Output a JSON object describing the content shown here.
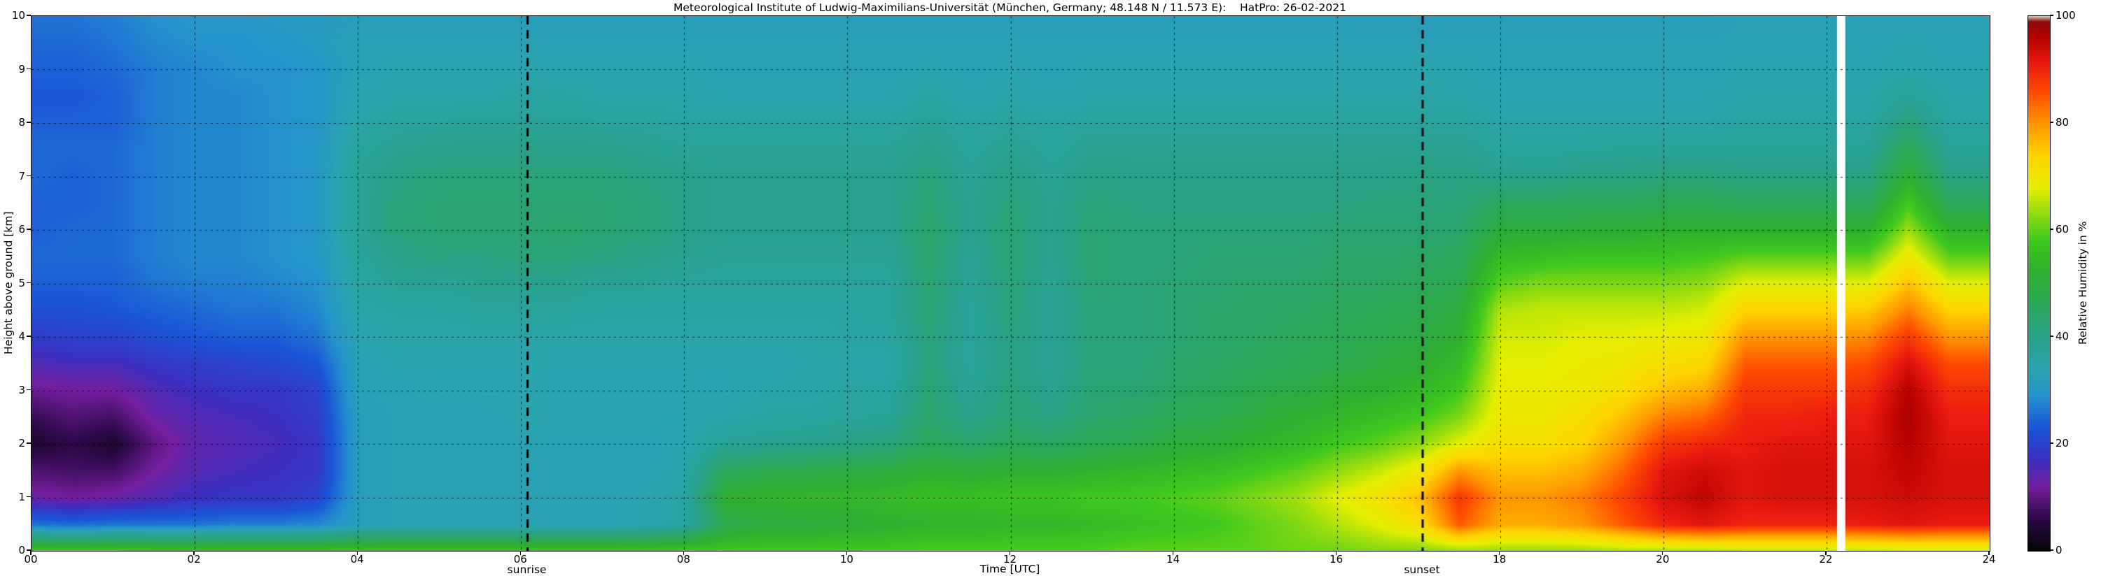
{
  "title": "Meteorological Institute of Ludwig-Maximilians-Universität (München, Germany; 48.148 N / 11.573 E):    HatPro: 26-02-2021",
  "axes": {
    "x": {
      "label": "Time [UTC]",
      "tick_values": [
        0,
        2,
        4,
        6,
        8,
        10,
        12,
        14,
        16,
        18,
        20,
        22,
        24
      ],
      "tick_labels": [
        "00",
        "02",
        "04",
        "06",
        "08",
        "10",
        "12",
        "14",
        "16",
        "18",
        "20",
        "22",
        "24"
      ],
      "grid_hours": [
        2,
        4,
        6,
        8,
        10,
        12,
        14,
        16,
        18,
        20,
        22
      ],
      "min": 0,
      "max": 24
    },
    "y": {
      "label": "Height above ground [km]",
      "tick_values": [
        0,
        1,
        2,
        3,
        4,
        5,
        6,
        7,
        8,
        9,
        10
      ],
      "tick_labels": [
        "0",
        "1",
        "2",
        "3",
        "4",
        "5",
        "6",
        "7",
        "8",
        "9",
        "10"
      ],
      "grid_km": [
        1,
        2,
        3,
        4,
        5,
        6,
        7,
        8,
        9
      ],
      "min": 0,
      "max": 10
    },
    "colorbar": {
      "label": "Relative Humidity in %",
      "tick_values": [
        0,
        20,
        40,
        60,
        80,
        100
      ],
      "tick_labels": [
        "0",
        "20",
        "40",
        "60",
        "80",
        "100"
      ],
      "min": 0,
      "max": 100
    }
  },
  "annotations": {
    "sunrise": {
      "label": "sunrise",
      "time": 6.08
    },
    "sunset": {
      "label": "sunset",
      "time": 17.05
    }
  },
  "missing_data": {
    "time": 22.18,
    "duration_h": 0.1
  },
  "chart_data": {
    "type": "heatmap",
    "x_range": [
      0,
      24
    ],
    "y_range": [
      0,
      10
    ],
    "time_step_h": 0.5,
    "height_step_km": 0.5,
    "value_label": "Relative Humidity in %",
    "value_range": [
      0,
      100
    ],
    "colormap_stops": [
      [
        0,
        "#060606"
      ],
      [
        6,
        "#2b0846"
      ],
      [
        12,
        "#741e9e"
      ],
      [
        17,
        "#3b2fc0"
      ],
      [
        23,
        "#1a55d8"
      ],
      [
        29,
        "#2492cc"
      ],
      [
        34,
        "#2aa4ae"
      ],
      [
        40,
        "#28a189"
      ],
      [
        46,
        "#2aa75a"
      ],
      [
        52,
        "#2fae30"
      ],
      [
        58,
        "#3ec81e"
      ],
      [
        63,
        "#90dc10"
      ],
      [
        68,
        "#e6ef00"
      ],
      [
        74,
        "#ffd500"
      ],
      [
        80,
        "#ff9700"
      ],
      [
        86,
        "#ff4a00"
      ],
      [
        91,
        "#ea1c10"
      ],
      [
        96,
        "#b70000"
      ],
      [
        99,
        "#8c0a0a"
      ],
      [
        100,
        "#cfc5ac"
      ]
    ],
    "values": [
      [
        58,
        26,
        13,
        9,
        4,
        7,
        11,
        15,
        19,
        22,
        24,
        25,
        24,
        24,
        25,
        25,
        24,
        23,
        24,
        25,
        26
      ],
      [
        58,
        25,
        12,
        8,
        6,
        9,
        12,
        16,
        20,
        22,
        24,
        25,
        25,
        24,
        24,
        25,
        24,
        23,
        24,
        25,
        26
      ],
      [
        58,
        26,
        13,
        8,
        4,
        8,
        12,
        16,
        20,
        23,
        24,
        25,
        25,
        25,
        25,
        25,
        24,
        24,
        25,
        26,
        27
      ],
      [
        57,
        26,
        15,
        12,
        10,
        13,
        15,
        18,
        22,
        24,
        26,
        27,
        27,
        27,
        27,
        27,
        27,
        27,
        27,
        28,
        29
      ],
      [
        57,
        26,
        17,
        15,
        14,
        15,
        17,
        19,
        23,
        25,
        27,
        28,
        28,
        28,
        28,
        28,
        28,
        28,
        28,
        29,
        30
      ],
      [
        57,
        27,
        18,
        16,
        15,
        16,
        18,
        20,
        24,
        26,
        27,
        28,
        28,
        28,
        28,
        28,
        28,
        28,
        29,
        29,
        30
      ],
      [
        57,
        27,
        18,
        17,
        16,
        17,
        18,
        21,
        24,
        26,
        28,
        29,
        29,
        29,
        29,
        29,
        29,
        29,
        29,
        30,
        31
      ],
      [
        57,
        28,
        20,
        18,
        18,
        19,
        20,
        23,
        26,
        28,
        29,
        30,
        30,
        30,
        30,
        30,
        30,
        30,
        30,
        31,
        31
      ],
      [
        57,
        32,
        32,
        32,
        32,
        32,
        33,
        33,
        34,
        35,
        36,
        37,
        38,
        38,
        38,
        37,
        35,
        34,
        33,
        33,
        32
      ],
      [
        57,
        33,
        33,
        33,
        33,
        33,
        33,
        34,
        35,
        36,
        38,
        40,
        42,
        42,
        41,
        39,
        37,
        35,
        34,
        33,
        32
      ],
      [
        57,
        33,
        33,
        33,
        33,
        33,
        34,
        34,
        35,
        36,
        38,
        41,
        43,
        43,
        42,
        40,
        37,
        35,
        34,
        33,
        32
      ],
      [
        57,
        33,
        33,
        33,
        33,
        33,
        34,
        34,
        35,
        37,
        39,
        41,
        43,
        43,
        42,
        40,
        38,
        35,
        34,
        33,
        32
      ],
      [
        57,
        33,
        33,
        33,
        33,
        34,
        34,
        34,
        35,
        37,
        39,
        42,
        43,
        43,
        42,
        40,
        38,
        36,
        34,
        33,
        32
      ],
      [
        57,
        33,
        33,
        33,
        33,
        34,
        34,
        34,
        35,
        37,
        39,
        42,
        44,
        43,
        42,
        40,
        38,
        36,
        34,
        33,
        32
      ],
      [
        57,
        33,
        33,
        33,
        33,
        34,
        34,
        34,
        35,
        36,
        38,
        41,
        43,
        43,
        42,
        40,
        37,
        35,
        34,
        33,
        32
      ],
      [
        57,
        34,
        34,
        33,
        33,
        34,
        34,
        34,
        35,
        36,
        38,
        40,
        42,
        42,
        41,
        39,
        37,
        35,
        34,
        33,
        32
      ],
      [
        58,
        36,
        36,
        35,
        34,
        34,
        34,
        34,
        35,
        36,
        37,
        39,
        40,
        40,
        40,
        38,
        36,
        35,
        34,
        33,
        32
      ],
      [
        58,
        48,
        52,
        46,
        38,
        35,
        34,
        34,
        35,
        36,
        37,
        38,
        39,
        39,
        39,
        38,
        36,
        34,
        33,
        33,
        32
      ],
      [
        58,
        50,
        53,
        48,
        39,
        36,
        35,
        34,
        35,
        36,
        37,
        38,
        39,
        39,
        39,
        38,
        36,
        34,
        33,
        33,
        32
      ],
      [
        58,
        50,
        54,
        48,
        40,
        36,
        35,
        35,
        35,
        36,
        37,
        38,
        39,
        39,
        39,
        38,
        36,
        34,
        33,
        33,
        32
      ],
      [
        58,
        51,
        54,
        49,
        41,
        37,
        36,
        35,
        36,
        36,
        37,
        38,
        39,
        39,
        39,
        38,
        36,
        34,
        33,
        33,
        32
      ],
      [
        58,
        52,
        55,
        50,
        42,
        38,
        36,
        35,
        36,
        37,
        37,
        38,
        39,
        39,
        39,
        38,
        36,
        34,
        33,
        33,
        32
      ],
      [
        59,
        53,
        56,
        52,
        46,
        44,
        43,
        42,
        42,
        43,
        43,
        44,
        44,
        43,
        42,
        40,
        38,
        36,
        34,
        33,
        32
      ],
      [
        59,
        53,
        56,
        51,
        44,
        40,
        38,
        37,
        37,
        37,
        38,
        38,
        39,
        39,
        38,
        37,
        36,
        34,
        33,
        33,
        32
      ],
      [
        59,
        54,
        57,
        52,
        46,
        43,
        42,
        41,
        41,
        42,
        42,
        43,
        43,
        42,
        41,
        39,
        37,
        35,
        34,
        33,
        32
      ],
      [
        59,
        54,
        57,
        52,
        45,
        41,
        39,
        38,
        38,
        38,
        38,
        39,
        39,
        39,
        38,
        37,
        36,
        34,
        33,
        33,
        32
      ],
      [
        59,
        55,
        58,
        53,
        47,
        44,
        43,
        42,
        42,
        42,
        43,
        43,
        43,
        42,
        41,
        39,
        37,
        35,
        34,
        33,
        32
      ],
      [
        60,
        56,
        58,
        54,
        48,
        45,
        43,
        42,
        42,
        42,
        42,
        42,
        42,
        41,
        40,
        39,
        37,
        35,
        34,
        33,
        32
      ],
      [
        60,
        57,
        59,
        55,
        50,
        47,
        45,
        44,
        43,
        43,
        43,
        42,
        42,
        41,
        40,
        39,
        37,
        35,
        34,
        33,
        32
      ],
      [
        60,
        58,
        60,
        56,
        51,
        48,
        46,
        45,
        44,
        44,
        43,
        43,
        42,
        41,
        40,
        39,
        37,
        35,
        34,
        33,
        32
      ],
      [
        60,
        60,
        62,
        58,
        53,
        50,
        48,
        46,
        45,
        44,
        44,
        43,
        42,
        41,
        40,
        39,
        37,
        35,
        34,
        33,
        32
      ],
      [
        61,
        62,
        64,
        60,
        55,
        52,
        49,
        47,
        46,
        45,
        44,
        43,
        42,
        41,
        40,
        39,
        37,
        35,
        34,
        33,
        32
      ],
      [
        61,
        65,
        68,
        63,
        58,
        54,
        51,
        48,
        47,
        46,
        45,
        44,
        43,
        41,
        40,
        39,
        37,
        35,
        34,
        33,
        32
      ],
      [
        62,
        68,
        71,
        66,
        60,
        56,
        52,
        50,
        48,
        47,
        45,
        44,
        43,
        42,
        40,
        39,
        37,
        35,
        34,
        33,
        32
      ],
      [
        62,
        72,
        76,
        70,
        63,
        58,
        54,
        51,
        49,
        48,
        46,
        45,
        43,
        42,
        41,
        39,
        37,
        35,
        34,
        33,
        32
      ],
      [
        63,
        85,
        88,
        80,
        68,
        62,
        58,
        55,
        52,
        50,
        48,
        46,
        44,
        42,
        41,
        39,
        37,
        35,
        34,
        33,
        32
      ],
      [
        63,
        78,
        80,
        76,
        72,
        70,
        69,
        68,
        67,
        65,
        60,
        55,
        50,
        46,
        40,
        37,
        35,
        34,
        33,
        33,
        32
      ],
      [
        63,
        78,
        80,
        76,
        72,
        70,
        69,
        68,
        67,
        66,
        62,
        56,
        50,
        46,
        40,
        37,
        35,
        34,
        33,
        33,
        32
      ],
      [
        63,
        80,
        82,
        78,
        74,
        72,
        70,
        69,
        68,
        66,
        62,
        57,
        51,
        46,
        41,
        37,
        35,
        34,
        33,
        33,
        32
      ],
      [
        64,
        85,
        87,
        84,
        80,
        76,
        72,
        70,
        68,
        66,
        62,
        57,
        51,
        46,
        41,
        38,
        35,
        34,
        33,
        33,
        32
      ],
      [
        64,
        90,
        93,
        92,
        88,
        82,
        76,
        72,
        69,
        66,
        62,
        57,
        52,
        47,
        42,
        38,
        35,
        34,
        33,
        33,
        32
      ],
      [
        64,
        92,
        95,
        94,
        90,
        84,
        78,
        73,
        70,
        67,
        63,
        58,
        52,
        47,
        42,
        38,
        35,
        34,
        33,
        33,
        32
      ],
      [
        65,
        90,
        92,
        92,
        91,
        90,
        88,
        85,
        80,
        74,
        68,
        60,
        52,
        46,
        41,
        38,
        36,
        35,
        34,
        33,
        33
      ],
      [
        65,
        90,
        93,
        93,
        92,
        90,
        88,
        85,
        80,
        74,
        68,
        60,
        52,
        46,
        41,
        38,
        36,
        35,
        34,
        33,
        33
      ],
      [
        65,
        90,
        93,
        93,
        92,
        91,
        88,
        85,
        80,
        74,
        68,
        60,
        52,
        46,
        41,
        38,
        36,
        35,
        34,
        33,
        33
      ],
      [
        65,
        91,
        93,
        93,
        92,
        91,
        89,
        86,
        81,
        75,
        68,
        60,
        52,
        46,
        41,
        38,
        36,
        35,
        34,
        33,
        33
      ],
      [
        66,
        92,
        94,
        95,
        96,
        97,
        96,
        93,
        88,
        82,
        76,
        70,
        64,
        58,
        52,
        47,
        42,
        38,
        35,
        34,
        33
      ],
      [
        66,
        91,
        93,
        93,
        92,
        91,
        89,
        86,
        80,
        74,
        68,
        60,
        53,
        46,
        41,
        38,
        36,
        35,
        34,
        33,
        33
      ]
    ]
  }
}
